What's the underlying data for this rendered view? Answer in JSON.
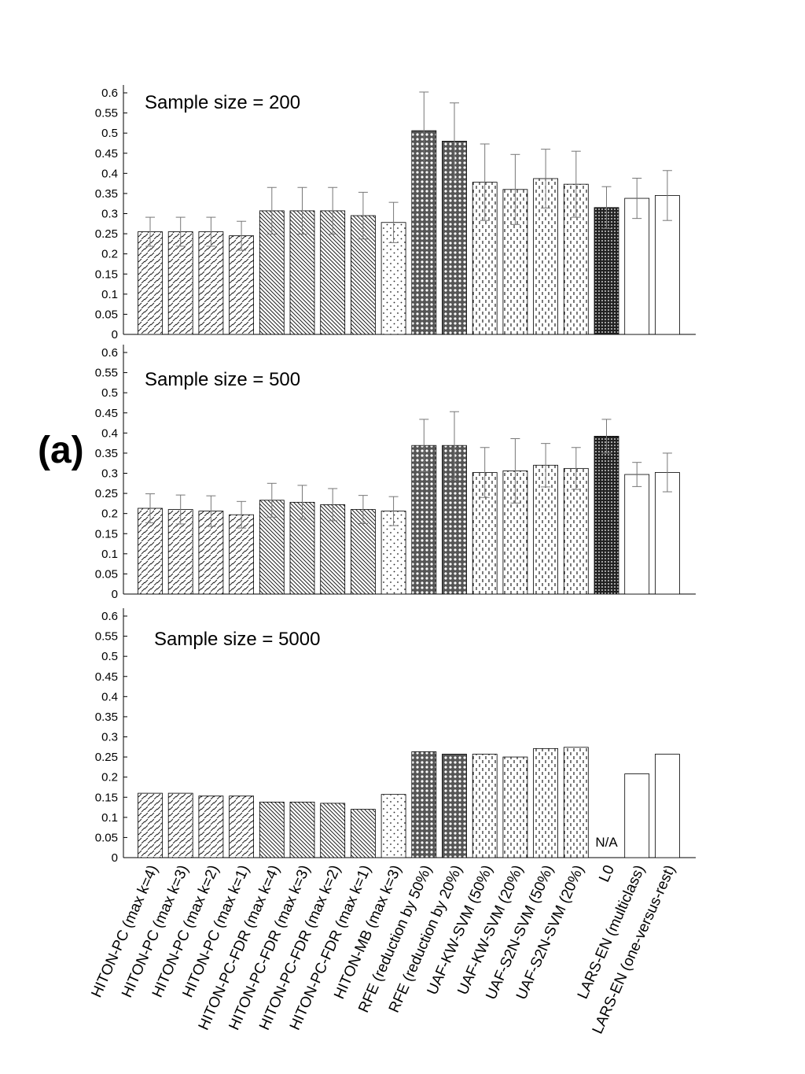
{
  "figure_label": "(a)",
  "chart_data": [
    {
      "type": "bar",
      "title": "Sample size = 200",
      "ylim": [
        0,
        0.6
      ],
      "yticks": [
        "0",
        "0.05",
        "0.1",
        "0.15",
        "0.2",
        "0.25",
        "0.3",
        "0.35",
        "0.4",
        "0.45",
        "0.5",
        "0.55",
        "0.6"
      ],
      "values": [
        0.255,
        0.255,
        0.255,
        0.245,
        0.307,
        0.307,
        0.307,
        0.295,
        0.278,
        0.506,
        0.48,
        0.378,
        0.36,
        0.387,
        0.373,
        0.315,
        0.338,
        0.345
      ],
      "errors": [
        0.036,
        0.036,
        0.036,
        0.036,
        0.058,
        0.058,
        0.058,
        0.058,
        0.05,
        0.096,
        0.095,
        0.095,
        0.087,
        0.073,
        0.082,
        0.052,
        0.05,
        0.062
      ],
      "na_label": ""
    },
    {
      "type": "bar",
      "title": "Sample size = 500",
      "ylim": [
        0,
        0.6
      ],
      "yticks": [
        "0",
        "0.05",
        "0.1",
        "0.15",
        "0.2",
        "0.25",
        "0.3",
        "0.35",
        "0.4",
        "0.45",
        "0.5",
        "0.55",
        "0.6"
      ],
      "values": [
        0.213,
        0.21,
        0.206,
        0.197,
        0.233,
        0.228,
        0.222,
        0.21,
        0.206,
        0.369,
        0.369,
        0.302,
        0.306,
        0.32,
        0.312,
        0.392,
        0.297,
        0.302
      ],
      "errors": [
        0.036,
        0.036,
        0.038,
        0.033,
        0.042,
        0.042,
        0.04,
        0.035,
        0.036,
        0.065,
        0.084,
        0.062,
        0.08,
        0.054,
        0.052,
        0.042,
        0.03,
        0.048
      ],
      "na_label": ""
    },
    {
      "type": "bar",
      "title": "Sample size = 5000",
      "ylim": [
        0,
        0.6
      ],
      "yticks": [
        "0",
        "0.05",
        "0.1",
        "0.15",
        "0.2",
        "0.25",
        "0.3",
        "0.35",
        "0.4",
        "0.45",
        "0.5",
        "0.55",
        "0.6"
      ],
      "values": [
        0.16,
        0.16,
        0.153,
        0.153,
        0.138,
        0.138,
        0.135,
        0.12,
        0.157,
        0.263,
        0.257,
        0.257,
        0.25,
        0.271,
        0.274,
        null,
        0.208,
        0.257
      ],
      "errors": [],
      "na_label": "N/A"
    }
  ],
  "categories": [
    "HITON-PC (max k=4)",
    "HITON-PC (max k=3)",
    "HITON-PC (max k=2)",
    "HITON-PC (max k=1)",
    "HITON-PC-FDR (max k=4)",
    "HITON-PC-FDR (max k=3)",
    "HITON-PC-FDR (max k=2)",
    "HITON-PC-FDR (max k=1)",
    "HITON-MB (max k=3)",
    "RFE (reduction by 50%)",
    "RFE (reduction by 20%)",
    "UAF-KW-SVM (50%)",
    "UAF-KW-SVM (20%)",
    "UAF-S2N-SVM (50%)",
    "UAF-S2N-SVM (20%)",
    "L0",
    "LARS-EN (multiclass)",
    "LARS-EN (one-versus-rest)"
  ],
  "bar_patterns": [
    "hiton-pc",
    "hiton-pc",
    "hiton-pc",
    "hiton-pc",
    "hiton-pc-fdr",
    "hiton-pc-fdr",
    "hiton-pc-fdr",
    "hiton-pc-fdr",
    "hiton-mb",
    "rfe",
    "rfe",
    "uaf",
    "uaf",
    "uaf",
    "uaf",
    "l0",
    "lars",
    "lars"
  ]
}
